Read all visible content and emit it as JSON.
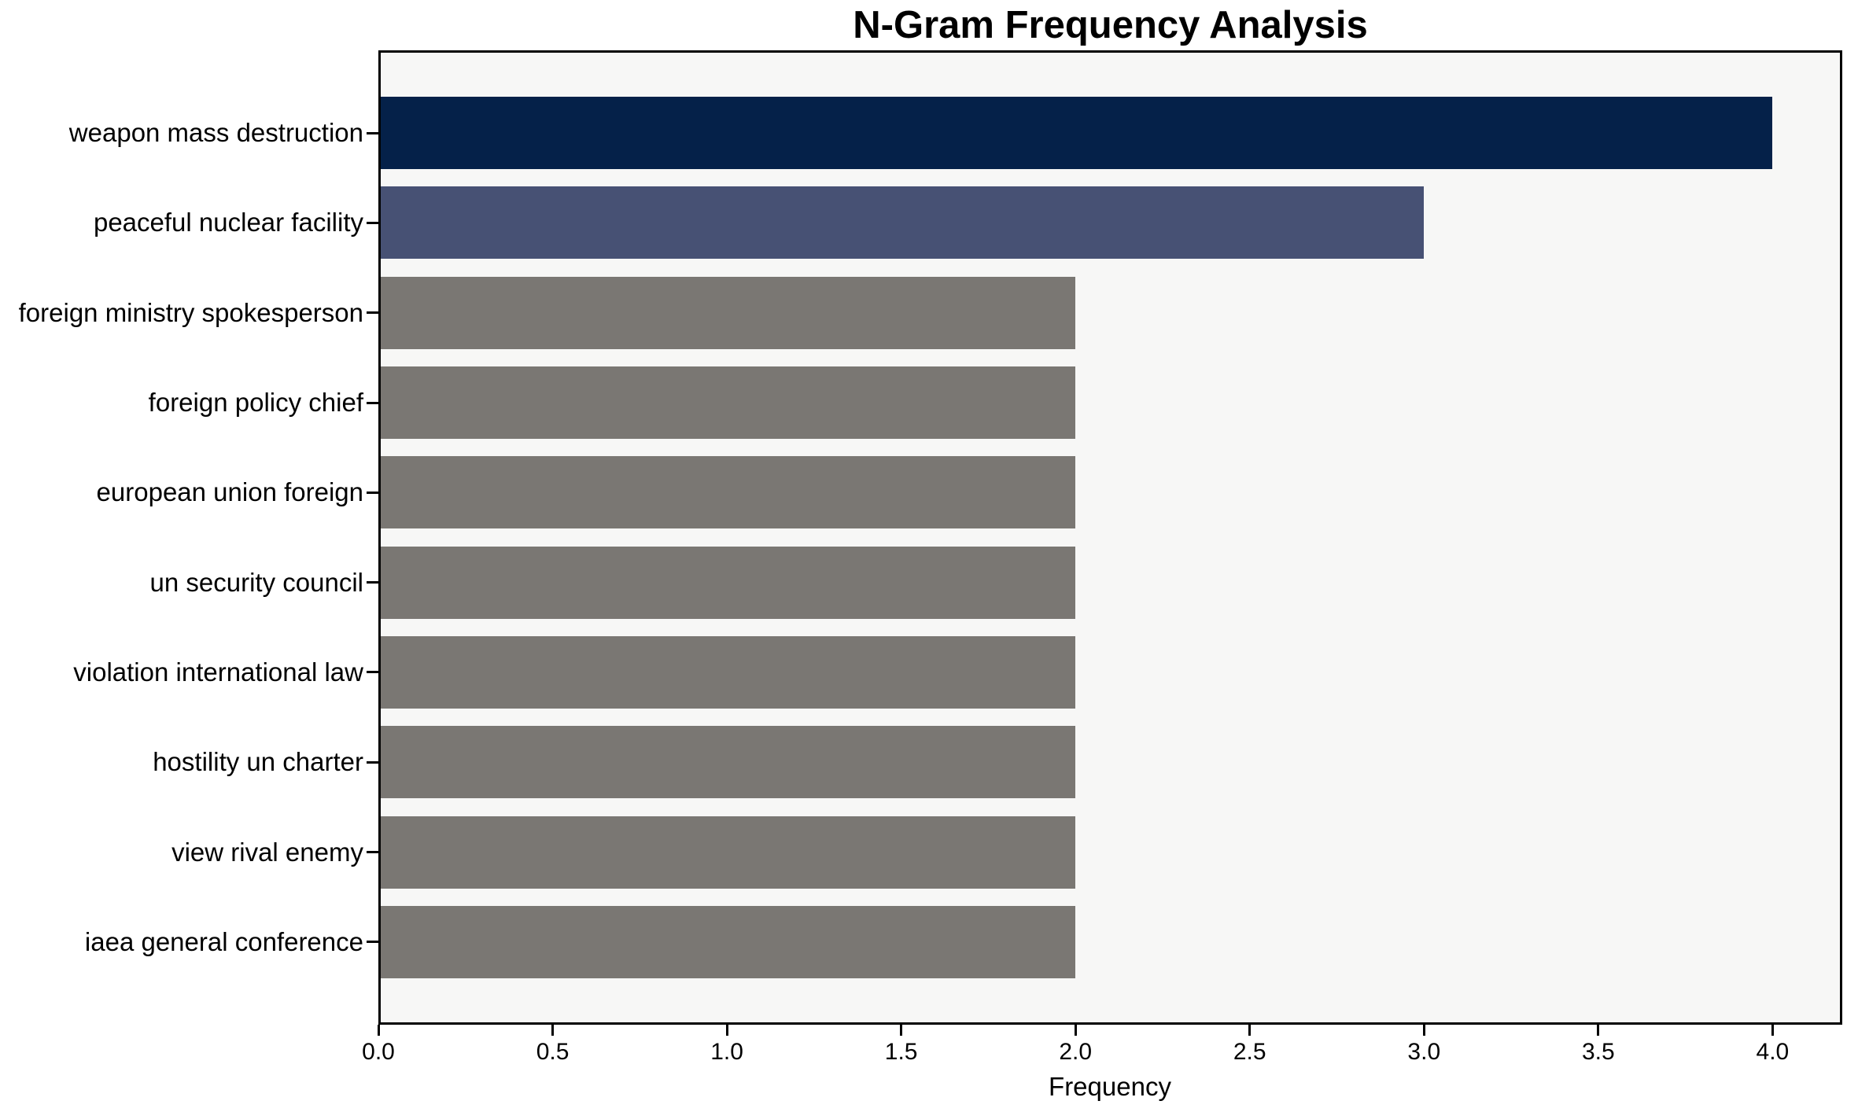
{
  "chart_data": {
    "type": "bar",
    "orientation": "horizontal",
    "title": "N-Gram Frequency Analysis",
    "xlabel": "Frequency",
    "ylabel": "",
    "categories": [
      "weapon mass destruction",
      "peaceful nuclear facility",
      "foreign ministry spokesperson",
      "foreign policy chief",
      "european union foreign",
      "un security council",
      "violation international law",
      "hostility un charter",
      "view rival enemy",
      "iaea general conference"
    ],
    "values": [
      4,
      3,
      2,
      2,
      2,
      2,
      2,
      2,
      2,
      2
    ],
    "bar_colors": [
      "#052149",
      "#475174",
      "#7a7773",
      "#7a7773",
      "#7a7773",
      "#7a7773",
      "#7a7773",
      "#7a7773",
      "#7a7773",
      "#7a7773"
    ],
    "xtick_labels": [
      "0.0",
      "0.5",
      "1.0",
      "1.5",
      "2.0",
      "2.5",
      "3.0",
      "3.5",
      "4.0"
    ],
    "xtick_values": [
      0,
      0.5,
      1,
      1.5,
      2,
      2.5,
      3,
      3.5,
      4
    ],
    "xlim": [
      0,
      4.2
    ],
    "grid": false,
    "legend_position": "none",
    "plot_background": "#f7f7f6",
    "figure_background": "#ffffff",
    "spine_color": "#000000"
  }
}
